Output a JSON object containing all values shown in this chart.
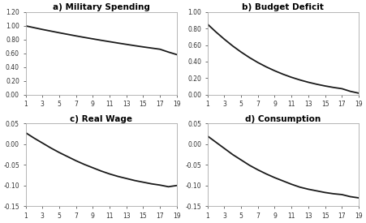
{
  "title_a": "a) Military Spending",
  "title_b": "b) Budget Deficit",
  "title_c": "c) Real Wage",
  "title_d": "d) Consumption",
  "x": [
    1,
    2,
    3,
    4,
    5,
    6,
    7,
    8,
    9,
    10,
    11,
    12,
    13,
    14,
    15,
    16,
    17,
    18,
    19
  ],
  "y_a": [
    1.0,
    0.974,
    0.948,
    0.924,
    0.9,
    0.877,
    0.854,
    0.832,
    0.811,
    0.79,
    0.77,
    0.75,
    0.731,
    0.712,
    0.694,
    0.677,
    0.66,
    0.619,
    0.582
  ],
  "y_b": [
    0.855,
    0.76,
    0.672,
    0.59,
    0.516,
    0.449,
    0.389,
    0.336,
    0.289,
    0.247,
    0.21,
    0.178,
    0.15,
    0.126,
    0.105,
    0.087,
    0.072,
    0.04,
    0.018
  ],
  "y_c": [
    0.028,
    0.015,
    0.003,
    -0.009,
    -0.02,
    -0.03,
    -0.04,
    -0.049,
    -0.057,
    -0.065,
    -0.072,
    -0.078,
    -0.083,
    -0.088,
    -0.092,
    -0.096,
    -0.099,
    -0.103,
    -0.1
  ],
  "y_d": [
    0.02,
    0.005,
    -0.01,
    -0.025,
    -0.038,
    -0.051,
    -0.062,
    -0.072,
    -0.081,
    -0.089,
    -0.097,
    -0.104,
    -0.109,
    -0.113,
    -0.117,
    -0.12,
    -0.122,
    -0.127,
    -0.13
  ],
  "ylim_a": [
    0.0,
    1.2
  ],
  "ylim_b": [
    0.0,
    1.0
  ],
  "ylim_c": [
    -0.15,
    0.05
  ],
  "ylim_d": [
    -0.15,
    0.05
  ],
  "yticks_a": [
    0.0,
    0.2,
    0.4,
    0.6,
    0.8,
    1.0,
    1.2
  ],
  "yticks_b": [
    0.0,
    0.2,
    0.4,
    0.6,
    0.8,
    1.0
  ],
  "yticks_c": [
    -0.15,
    -0.1,
    -0.05,
    0.0,
    0.05
  ],
  "yticks_d": [
    -0.15,
    -0.1,
    -0.05,
    0.0,
    0.05
  ],
  "xticks": [
    1,
    3,
    5,
    7,
    9,
    11,
    13,
    15,
    17,
    19
  ],
  "line_color": "#1a1a1a",
  "line_width": 1.3,
  "bg_color": "#ffffff",
  "panel_bg": "#ffffff",
  "spine_color": "#aaaaaa",
  "title_fontsize": 7.5,
  "tick_fontsize": 5.5
}
